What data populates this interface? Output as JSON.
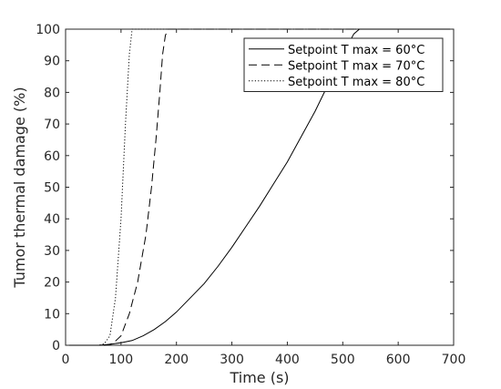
{
  "chart_data": {
    "type": "line",
    "title": "",
    "xlabel": "Time (s)",
    "ylabel": "Tumor thermal damage (%)",
    "xlim": [
      0,
      700
    ],
    "ylim": [
      0,
      100
    ],
    "xticks": [
      0,
      100,
      200,
      300,
      400,
      500,
      600,
      700
    ],
    "yticks": [
      0,
      10,
      20,
      30,
      40,
      50,
      60,
      70,
      80,
      90,
      100
    ],
    "grid": false,
    "legend_position": "top-right",
    "series": [
      {
        "name": "Setpoint T max = 60°C",
        "style": "solid",
        "color": "#000000",
        "points": [
          [
            0,
            0
          ],
          [
            60,
            0
          ],
          [
            80,
            0.3
          ],
          [
            100,
            0.8
          ],
          [
            120,
            1.5
          ],
          [
            140,
            3
          ],
          [
            160,
            5
          ],
          [
            180,
            7.5
          ],
          [
            200,
            10.5
          ],
          [
            225,
            15
          ],
          [
            250,
            19.5
          ],
          [
            275,
            25
          ],
          [
            300,
            31
          ],
          [
            325,
            37.5
          ],
          [
            350,
            44
          ],
          [
            375,
            51
          ],
          [
            400,
            58
          ],
          [
            425,
            66
          ],
          [
            450,
            74
          ],
          [
            475,
            83
          ],
          [
            500,
            92
          ],
          [
            520,
            98.5
          ],
          [
            530,
            100
          ],
          [
            700,
            100
          ]
        ]
      },
      {
        "name": "Setpoint T max = 70°C",
        "style": "dashed",
        "color": "#000000",
        "points": [
          [
            0,
            0
          ],
          [
            70,
            0
          ],
          [
            85,
            0.5
          ],
          [
            100,
            3
          ],
          [
            115,
            10
          ],
          [
            130,
            20
          ],
          [
            145,
            35
          ],
          [
            155,
            50
          ],
          [
            163,
            65
          ],
          [
            170,
            80
          ],
          [
            175,
            92
          ],
          [
            180,
            98
          ],
          [
            185,
            100
          ],
          [
            700,
            100
          ]
        ]
      },
      {
        "name": "Setpoint T max = 80°C",
        "style": "dotted",
        "color": "#000000",
        "points": [
          [
            0,
            0
          ],
          [
            60,
            0
          ],
          [
            70,
            0.5
          ],
          [
            80,
            3
          ],
          [
            90,
            15
          ],
          [
            100,
            40
          ],
          [
            108,
            70
          ],
          [
            115,
            92
          ],
          [
            120,
            100
          ],
          [
            700,
            100
          ]
        ]
      }
    ]
  }
}
